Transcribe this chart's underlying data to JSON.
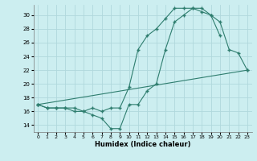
{
  "xlabel": "Humidex (Indice chaleur)",
  "line_color": "#2e7d6e",
  "bg_color": "#cceef0",
  "grid_color": "#b0d8dc",
  "xlim": [
    -0.5,
    23.5
  ],
  "ylim": [
    13,
    31.5
  ],
  "yticks": [
    14,
    16,
    18,
    20,
    22,
    24,
    26,
    28,
    30
  ],
  "xticks": [
    0,
    1,
    2,
    3,
    4,
    5,
    6,
    7,
    8,
    9,
    10,
    11,
    12,
    13,
    14,
    15,
    16,
    17,
    18,
    19,
    20,
    21,
    22,
    23
  ],
  "line1_x": [
    0,
    1,
    2,
    3,
    4,
    5,
    6,
    7,
    8,
    9,
    10,
    11,
    12,
    13,
    14,
    15,
    16,
    17,
    18,
    19,
    20,
    21,
    22,
    23
  ],
  "line1_y": [
    17,
    16.5,
    16.5,
    16.5,
    16,
    16,
    15.5,
    15,
    13.5,
    13.5,
    17,
    17,
    19,
    20,
    25,
    29,
    30,
    31,
    31,
    30,
    29,
    25,
    24.5,
    22
  ],
  "line2_x": [
    0,
    1,
    2,
    3,
    4,
    5,
    6,
    7,
    8,
    9,
    10,
    11,
    12,
    13,
    14,
    15,
    16,
    17,
    18,
    19,
    20
  ],
  "line2_y": [
    17,
    16.5,
    16.5,
    16.5,
    16.5,
    16,
    16.5,
    16,
    16.5,
    16.5,
    19.5,
    25,
    27,
    28,
    29.5,
    31,
    31,
    31,
    30.5,
    30,
    27
  ],
  "line3_x": [
    0,
    23
  ],
  "line3_y": [
    17,
    22
  ]
}
